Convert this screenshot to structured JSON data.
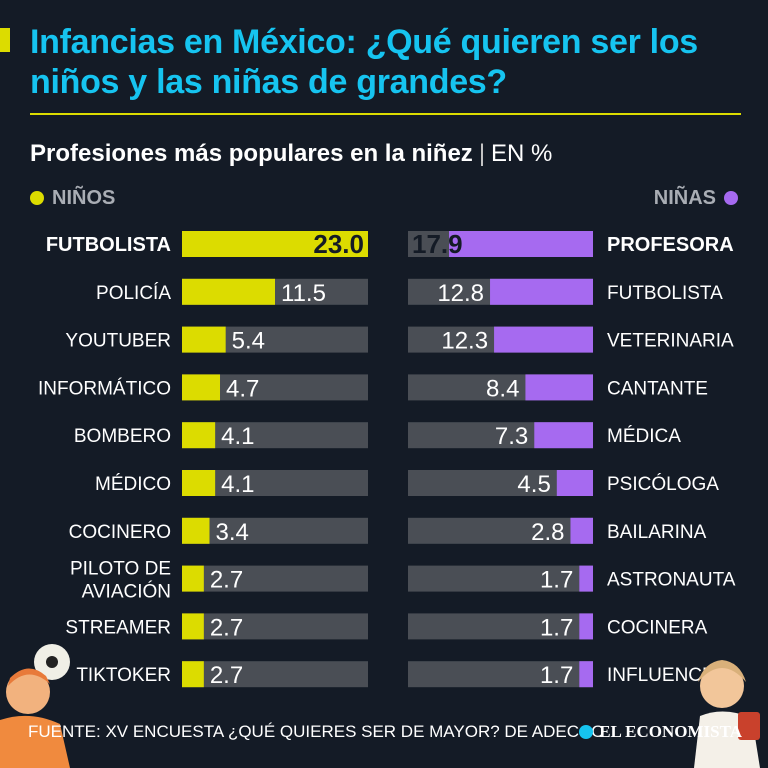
{
  "header": {
    "title": "Infancias en México: ¿Qué quieren ser los niños y las niñas de grandes?",
    "subtitle_main": "Profesiones más populares en la niñez",
    "subtitle_sep": "|",
    "subtitle_unit": "EN %"
  },
  "legend": {
    "boys": "NIÑOS",
    "girls": "NIÑAS"
  },
  "colors": {
    "boys": "#dcdc00",
    "girls": "#a66af0",
    "track": "#4a4e55",
    "title": "#16c4f0",
    "background": "#141b26"
  },
  "chart_data": {
    "type": "bar",
    "unit": "EN %",
    "xlim": [
      0,
      23.0
    ],
    "series": [
      {
        "name": "NIÑOS",
        "categories": [
          "FUTBOLISTA",
          "POLICÍA",
          "YOUTUBER",
          "INFORMÁTICO",
          "BOMBERO",
          "MÉDICO",
          "COCINERO",
          "PILOTO DE AVIACIÓN",
          "STREAMER",
          "TIKTOKER"
        ],
        "values": [
          23.0,
          11.5,
          5.4,
          4.7,
          4.1,
          4.1,
          3.4,
          2.7,
          2.7,
          2.7
        ]
      },
      {
        "name": "NIÑAS",
        "categories": [
          "PROFESORA",
          "FUTBOLISTA",
          "VETERINARIA",
          "CANTANTE",
          "MÉDICA",
          "PSICÓLOGA",
          "BAILARINA",
          "ASTRONAUTA",
          "COCINERA",
          "INFLUENCER"
        ],
        "values": [
          17.9,
          12.8,
          12.3,
          8.4,
          7.3,
          4.5,
          2.8,
          1.7,
          1.7,
          1.7
        ]
      }
    ]
  },
  "footer": {
    "source": "FUENTE: XV ENCUESTA ¿QUÉ QUIERES SER DE MAYOR? DE ADECCO",
    "brand": "EL ECONOMISTA"
  }
}
